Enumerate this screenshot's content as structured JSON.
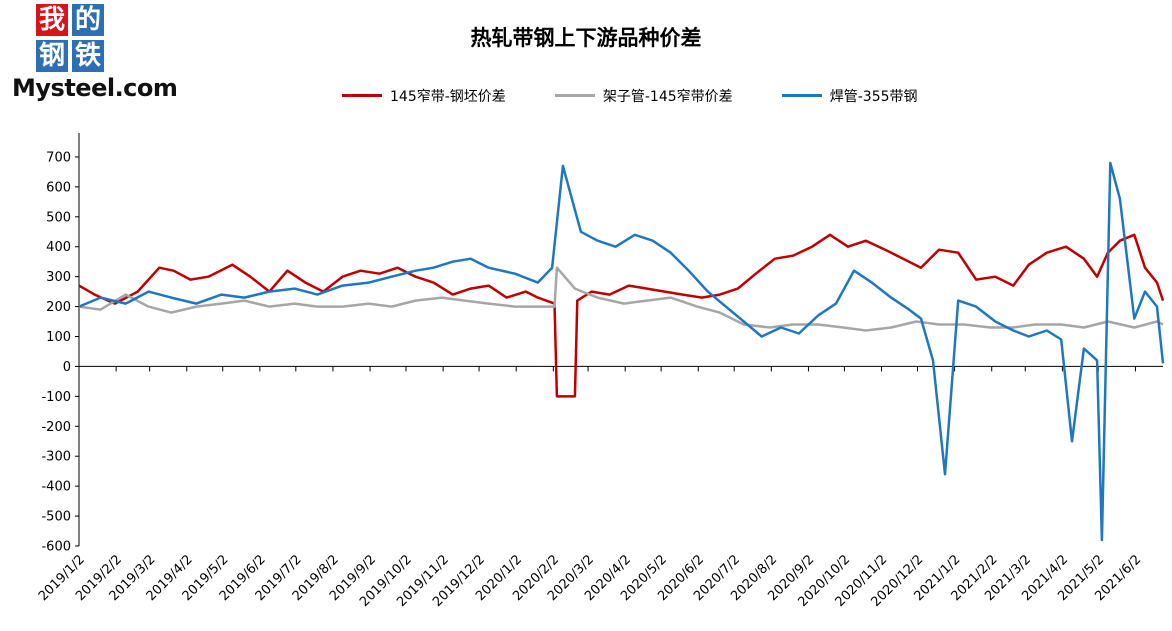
{
  "logo": {
    "chars": [
      "我",
      "的",
      "钢",
      "铁"
    ],
    "colors": [
      "#d7141a",
      "#2d6fb5",
      "#2d6fb5",
      "#2d6fb5"
    ],
    "wordmark": "Mysteel.com"
  },
  "chart_data": {
    "type": "line",
    "title": "热轧带钢上下游品种价差",
    "xlabel": "",
    "ylabel": "",
    "ylim": [
      -600,
      780
    ],
    "yticks": [
      -600,
      -500,
      -400,
      -300,
      -200,
      -100,
      0,
      100,
      200,
      300,
      400,
      500,
      600,
      700
    ],
    "x_range": [
      "2019/1/2",
      "2021/6/25"
    ],
    "x_tick_labels": [
      "2019/1/2",
      "2019/2/2",
      "2019/3/2",
      "2019/4/2",
      "2019/5/2",
      "2019/6/2",
      "2019/7/2",
      "2019/8/2",
      "2019/9/2",
      "2019/10/2",
      "2019/11/2",
      "2019/12/2",
      "2020/1/2",
      "2020/2/2",
      "2020/3/2",
      "2020/4/2",
      "2020/5/2",
      "2020/6/2",
      "2020/7/2",
      "2020/8/2",
      "2020/9/2",
      "2020/10/2",
      "2020/11/2",
      "2020/12/2",
      "2021/1/2",
      "2021/2/2",
      "2021/3/2",
      "2021/4/2",
      "2021/5/2",
      "2021/6/2"
    ],
    "grid": false,
    "legend_position": "top",
    "series": [
      {
        "name": "145窄带-钢坯价差",
        "color": "#c00000",
        "x": [
          "2019/1/2",
          "2019/1/15",
          "2019/2/1",
          "2019/2/20",
          "2019/3/10",
          "2019/3/22",
          "2019/4/5",
          "2019/4/20",
          "2019/5/10",
          "2019/5/25",
          "2019/6/10",
          "2019/6/25",
          "2019/7/10",
          "2019/7/25",
          "2019/8/10",
          "2019/8/25",
          "2019/9/10",
          "2019/9/25",
          "2019/10/10",
          "2019/10/25",
          "2019/11/10",
          "2019/11/25",
          "2019/12/10",
          "2019/12/25",
          "2020/1/10",
          "2020/1/20",
          "2020/2/3",
          "2020/2/5",
          "2020/2/20",
          "2020/2/22",
          "2020/3/5",
          "2020/3/20",
          "2020/4/5",
          "2020/4/20",
          "2020/5/5",
          "2020/5/20",
          "2020/6/5",
          "2020/6/20",
          "2020/7/5",
          "2020/7/20",
          "2020/8/5",
          "2020/8/20",
          "2020/9/5",
          "2020/9/20",
          "2020/10/5",
          "2020/10/20",
          "2020/11/5",
          "2020/11/20",
          "2020/12/5",
          "2020/12/20",
          "2021/1/5",
          "2021/1/20",
          "2021/2/5",
          "2021/2/20",
          "2021/3/5",
          "2021/3/20",
          "2021/4/5",
          "2021/4/20",
          "2021/5/1",
          "2021/5/10",
          "2021/5/20",
          "2021/6/1",
          "2021/6/10",
          "2021/6/20",
          "2021/6/25"
        ],
        "y": [
          270,
          240,
          210,
          250,
          330,
          320,
          290,
          300,
          340,
          300,
          250,
          320,
          280,
          250,
          300,
          320,
          310,
          330,
          300,
          280,
          240,
          260,
          270,
          230,
          250,
          230,
          210,
          -100,
          -100,
          220,
          250,
          240,
          270,
          260,
          250,
          240,
          230,
          240,
          260,
          310,
          360,
          370,
          400,
          440,
          400,
          420,
          390,
          360,
          330,
          390,
          380,
          290,
          300,
          270,
          340,
          380,
          400,
          360,
          300,
          380,
          420,
          440,
          330,
          280,
          220
        ]
      },
      {
        "name": "架子管-145窄带价差",
        "color": "#a6a6a6",
        "x": [
          "2019/1/2",
          "2019/1/20",
          "2019/2/10",
          "2019/3/1",
          "2019/3/20",
          "2019/4/10",
          "2019/5/1",
          "2019/5/20",
          "2019/6/10",
          "2019/7/1",
          "2019/7/20",
          "2019/8/10",
          "2019/9/1",
          "2019/9/20",
          "2019/10/10",
          "2019/11/1",
          "2019/11/20",
          "2019/12/10",
          "2020/1/1",
          "2020/1/20",
          "2020/2/3",
          "2020/2/5",
          "2020/2/20",
          "2020/3/10",
          "2020/4/1",
          "2020/4/20",
          "2020/5/10",
          "2020/6/1",
          "2020/6/20",
          "2020/7/10",
          "2020/8/1",
          "2020/8/20",
          "2020/9/10",
          "2020/10/1",
          "2020/10/20",
          "2020/11/10",
          "2020/12/1",
          "2020/12/20",
          "2021/1/10",
          "2021/2/1",
          "2021/2/20",
          "2021/3/10",
          "2021/4/1",
          "2021/4/20",
          "2021/5/10",
          "2021/6/1",
          "2021/6/20",
          "2021/6/25"
        ],
        "y": [
          200,
          190,
          240,
          200,
          180,
          200,
          210,
          220,
          200,
          210,
          200,
          200,
          210,
          200,
          220,
          230,
          220,
          210,
          200,
          200,
          200,
          330,
          260,
          230,
          210,
          220,
          230,
          200,
          180,
          140,
          130,
          140,
          140,
          130,
          120,
          130,
          150,
          140,
          140,
          130,
          130,
          140,
          140,
          130,
          150,
          130,
          150,
          140
        ]
      },
      {
        "name": "焊管-355带钢",
        "color": "#1f77c2",
        "x": [
          "2019/1/2",
          "2019/1/20",
          "2019/2/10",
          "2019/3/1",
          "2019/3/20",
          "2019/4/10",
          "2019/5/1",
          "2019/5/20",
          "2019/6/10",
          "2019/7/1",
          "2019/7/20",
          "2019/8/10",
          "2019/9/1",
          "2019/9/20",
          "2019/10/10",
          "2019/10/25",
          "2019/11/10",
          "2019/11/25",
          "2019/12/10",
          "2020/1/1",
          "2020/1/20",
          "2020/2/1",
          "2020/2/10",
          "2020/2/25",
          "2020/3/10",
          "2020/3/25",
          "2020/4/10",
          "2020/4/25",
          "2020/5/10",
          "2020/5/25",
          "2020/6/10",
          "2020/6/25",
          "2020/7/10",
          "2020/7/25",
          "2020/8/10",
          "2020/8/25",
          "2020/9/10",
          "2020/9/25",
          "2020/10/10",
          "2020/10/25",
          "2020/11/10",
          "2020/11/25",
          "2020/12/5",
          "2020/12/15",
          "2020/12/25",
          "2021/1/5",
          "2021/1/20",
          "2021/2/5",
          "2021/2/20",
          "2021/3/5",
          "2021/3/20",
          "2021/4/1",
          "2021/4/10",
          "2021/4/20",
          "2021/5/1",
          "2021/5/5",
          "2021/5/12",
          "2021/5/20",
          "2021/6/1",
          "2021/6/10",
          "2021/6/20",
          "2021/6/25"
        ],
        "y": [
          200,
          230,
          210,
          250,
          230,
          210,
          240,
          230,
          250,
          260,
          240,
          270,
          280,
          300,
          320,
          330,
          350,
          360,
          330,
          310,
          280,
          330,
          670,
          450,
          420,
          400,
          440,
          420,
          380,
          320,
          250,
          200,
          150,
          100,
          130,
          110,
          170,
          210,
          320,
          280,
          230,
          190,
          160,
          20,
          -360,
          220,
          200,
          150,
          120,
          100,
          120,
          90,
          -250,
          60,
          20,
          -580,
          680,
          560,
          160,
          250,
          200,
          10
        ]
      }
    ]
  }
}
